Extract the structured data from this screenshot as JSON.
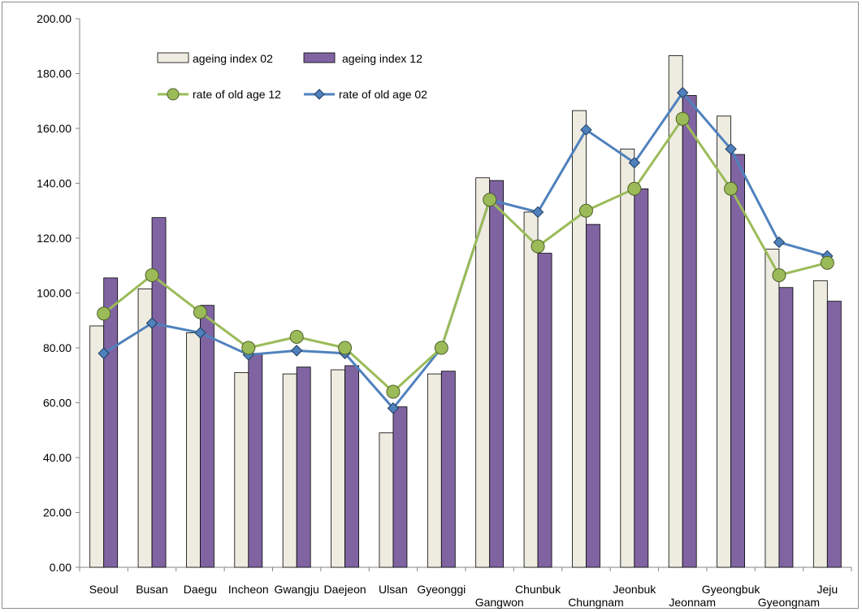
{
  "chart_data": {
    "type": "bar",
    "title": "",
    "xlabel": "",
    "ylabel": "",
    "ylim": [
      0,
      200
    ],
    "ytick_step": 20,
    "ytick_labels": [
      "0.00",
      "20.00",
      "40.00",
      "60.00",
      "80.00",
      "100.00",
      "120.00",
      "140.00",
      "160.00",
      "180.00",
      "200.00"
    ],
    "grid": false,
    "legend_position": "top-left",
    "categories": [
      "Seoul",
      "Busan",
      "Daegu",
      "Incheon",
      "Gwangju",
      "Daejeon",
      "Ulsan",
      "Gyeonggi",
      "Gangwon",
      "Chunbuk",
      "Chungnam",
      "Jeonbuk",
      "Jeonnam",
      "Gyeongbuk",
      "Gyeongnam",
      "Jeju"
    ],
    "series": [
      {
        "name": "ageing index 02",
        "kind": "bar",
        "color": "#eeece1",
        "stroke": "#000000",
        "values": [
          88.0,
          101.5,
          85.5,
          71.0,
          70.5,
          72.0,
          49.0,
          70.5,
          142.0,
          129.5,
          166.5,
          152.5,
          186.5,
          164.5,
          116.0,
          104.5
        ]
      },
      {
        "name": "ageing index 12",
        "kind": "bar",
        "color": "#8064a2",
        "stroke": "#000000",
        "values": [
          105.5,
          127.5,
          95.5,
          78.0,
          73.0,
          73.5,
          58.5,
          71.5,
          141.0,
          114.5,
          125.0,
          138.0,
          172.0,
          150.5,
          102.0,
          97.0
        ]
      },
      {
        "name": "rate of old age 12",
        "kind": "line",
        "marker": "circle",
        "color": "#9bbb59",
        "marker_fill": "#9bbb59",
        "marker_stroke": "#4e6128",
        "values": [
          92.5,
          106.5,
          93.0,
          80.0,
          84.0,
          80.0,
          64.0,
          80.0,
          134.0,
          117.0,
          130.0,
          138.0,
          163.5,
          138.0,
          106.5,
          111.0
        ]
      },
      {
        "name": "rate of old age 02",
        "kind": "line",
        "marker": "diamond",
        "color": "#4f81bd",
        "marker_fill": "#4f81bd",
        "marker_stroke": "#1f3b5c",
        "values": [
          78.0,
          89.0,
          85.5,
          77.5,
          79.0,
          78.0,
          58.0,
          80.0,
          134.0,
          129.5,
          159.5,
          147.5,
          173.0,
          152.5,
          118.5,
          113.5
        ]
      }
    ]
  }
}
